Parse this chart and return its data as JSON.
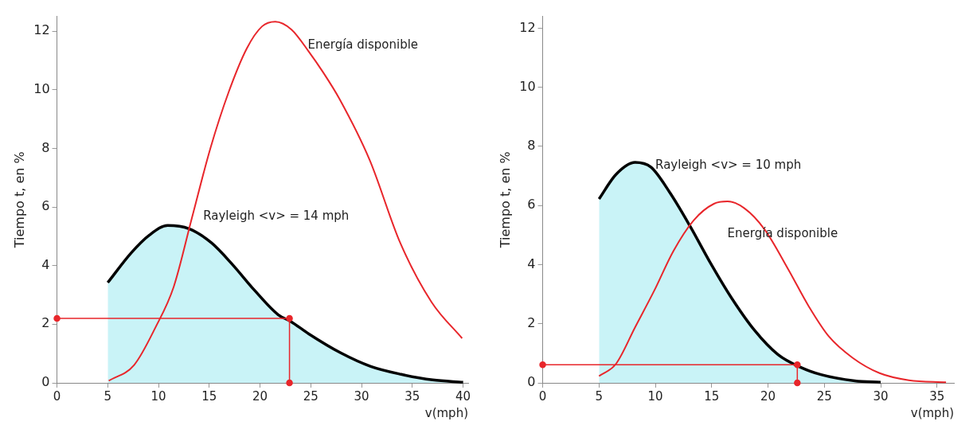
{
  "chart_data": [
    {
      "type": "line",
      "xlabel": "v(mph)",
      "ylabel": "Tiempo t, en %",
      "xlim": [
        0,
        40.5
      ],
      "ylim": [
        0,
        12.5
      ],
      "xticks": [
        0,
        5,
        10,
        15,
        20,
        25,
        30,
        35,
        40
      ],
      "yticks": [
        0,
        2,
        4,
        6,
        8,
        10,
        12
      ],
      "grid": false,
      "legend": false,
      "series": [
        {
          "name": "Rayleigh <v> = 14 mph",
          "type": "area",
          "color": "#000000",
          "x": [
            5,
            7.3,
            9.1,
            10.9,
            13,
            15.2,
            17.3,
            19.4,
            21.8,
            23,
            24.8,
            27.9,
            30.9,
            33.9,
            37,
            40
          ],
          "values": [
            3.42,
            4.43,
            5.04,
            5.37,
            5.26,
            4.78,
            4.03,
            3.18,
            2.32,
            2.1,
            1.67,
            1.03,
            0.56,
            0.29,
            0.1,
            0.02
          ]
        },
        {
          "name": "Energía disponible",
          "type": "line",
          "color": "#e8262b",
          "x": [
            5.1,
            7.6,
            9.7,
            11.5,
            13.3,
            15.1,
            16.9,
            18.7,
            20.2,
            21.5,
            23.1,
            24.8,
            26.2,
            27.8,
            30.8,
            33.8,
            36.9,
            39.9
          ],
          "values": [
            0.07,
            0.61,
            1.89,
            3.28,
            5.64,
            7.99,
            9.91,
            11.41,
            12.16,
            12.32,
            12.05,
            11.3,
            10.6,
            9.7,
            7.6,
            4.78,
            2.75,
            1.52
          ]
        },
        {
          "type": "line",
          "marker": "circle",
          "color": "#e8262b",
          "x": [
            0,
            22.9,
            22.9
          ],
          "values": [
            2.2,
            2.2,
            0
          ]
        }
      ]
    },
    {
      "type": "line",
      "xlabel": "v(mph)",
      "ylabel": "Tiempo t, en %",
      "xlim": [
        0,
        36.5
      ],
      "ylim": [
        0,
        12.4
      ],
      "xticks": [
        0,
        5,
        10,
        15,
        20,
        25,
        30,
        35
      ],
      "yticks": [
        0,
        2,
        4,
        6,
        8,
        10,
        12
      ],
      "grid": false,
      "legend": false,
      "series": [
        {
          "name": "Rayleigh <v> = 10 mph",
          "type": "area",
          "color": "#000000",
          "x": [
            5,
            6.5,
            8.2,
            9.6,
            11.3,
            13.1,
            14.9,
            16.7,
            18.8,
            20.9,
            22.8,
            24.7,
            27.7,
            30
          ],
          "values": [
            6.22,
            7.05,
            7.46,
            7.3,
            6.43,
            5.29,
            4.05,
            2.91,
            1.78,
            0.95,
            0.54,
            0.28,
            0.07,
            0.02
          ]
        },
        {
          "name": "Energía disponible",
          "type": "line",
          "color": "#e8262b",
          "x": [
            5,
            6.5,
            8.2,
            9.9,
            11.6,
            13.4,
            15.2,
            16.4,
            17.9,
            19.7,
            21.8,
            23.6,
            25.4,
            27.5,
            29.9,
            32.5,
            35.8
          ],
          "values": [
            0.23,
            0.64,
            1.88,
            3.12,
            4.46,
            5.5,
            6.06,
            6.14,
            5.91,
            5.19,
            3.84,
            2.6,
            1.57,
            0.85,
            0.33,
            0.09,
            0.02
          ]
        },
        {
          "type": "line",
          "marker": "circle",
          "color": "#e8262b",
          "x": [
            0,
            22.6,
            22.6
          ],
          "values": [
            0.61,
            0.61,
            0
          ]
        }
      ]
    }
  ]
}
